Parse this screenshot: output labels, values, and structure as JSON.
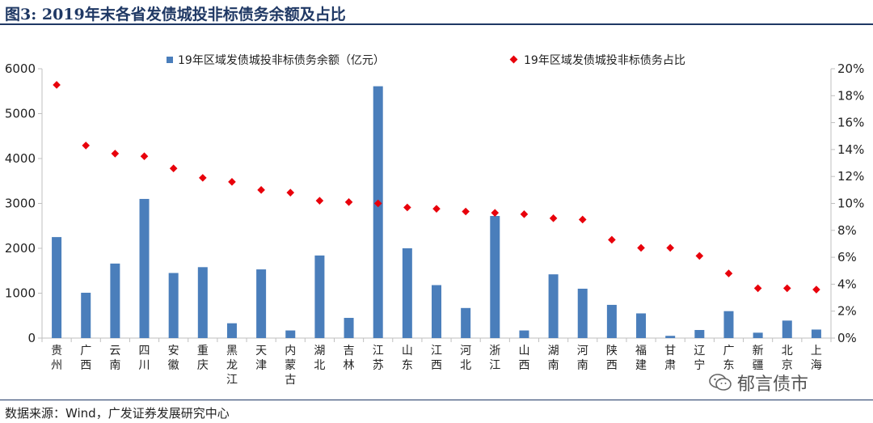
{
  "title": "图3:  2019年末各省发债城投非标债务余额及占比",
  "source": "数据来源：Wind，广发证券发展研究中心",
  "watermark": "郁言债市",
  "colors": {
    "bar": "#4a7ebb",
    "point": "#e8000b",
    "title": "#1f3864",
    "axis": "#bfbfbf"
  },
  "chart_data": {
    "type": "bar",
    "categories": [
      "贵州",
      "广西",
      "云南",
      "四川",
      "安徽",
      "重庆",
      "黑龙江",
      "天津",
      "内蒙古",
      "湖北",
      "吉林",
      "江苏",
      "山东",
      "江西",
      "河北",
      "浙江",
      "山西",
      "湖南",
      "河南",
      "陕西",
      "福建",
      "甘肃",
      "辽宁",
      "广东",
      "新疆",
      "北京",
      "上海"
    ],
    "series": [
      {
        "name": "19年区域发债城投非标债务余额（亿元）",
        "kind": "bar",
        "axis": "left",
        "values": [
          2250,
          1010,
          1660,
          3100,
          1450,
          1580,
          330,
          1530,
          170,
          1840,
          450,
          5610,
          2000,
          1180,
          670,
          2720,
          170,
          1420,
          1100,
          740,
          550,
          50,
          180,
          600,
          120,
          390,
          190
        ]
      },
      {
        "name": "19年区域发债城投非标债务占比",
        "kind": "scatter",
        "axis": "right",
        "values": [
          18.8,
          14.3,
          13.7,
          13.5,
          12.6,
          11.9,
          11.6,
          11.0,
          10.8,
          10.2,
          10.1,
          10.0,
          9.7,
          9.6,
          9.4,
          9.3,
          9.2,
          8.9,
          8.8,
          7.3,
          6.7,
          6.7,
          6.1,
          4.8,
          3.7,
          3.7,
          3.6
        ]
      }
    ],
    "y_left": {
      "min": 0,
      "max": 6000,
      "ticks": [
        "0",
        "1000",
        "2000",
        "3000",
        "4000",
        "5000",
        "6000"
      ]
    },
    "y_right": {
      "min": 0,
      "max": 20,
      "ticks": [
        "0%",
        "2%",
        "4%",
        "6%",
        "8%",
        "10%",
        "12%",
        "14%",
        "16%",
        "18%",
        "20%"
      ]
    },
    "legend_position": "top",
    "grid": false
  }
}
